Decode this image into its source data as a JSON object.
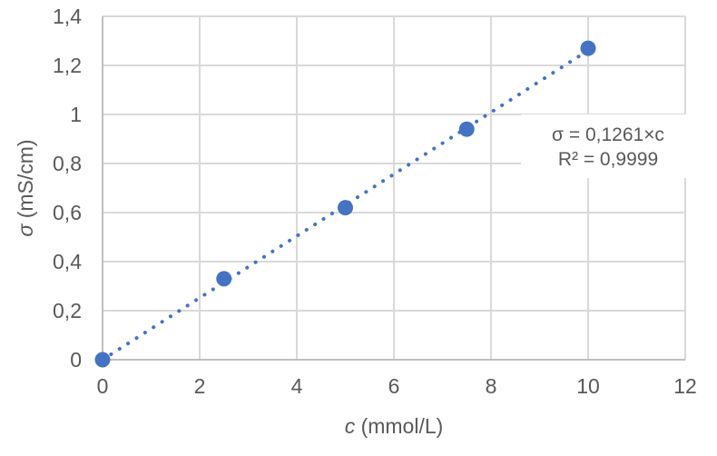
{
  "chart_data": {
    "type": "scatter",
    "title": "",
    "x": [
      0,
      2.5,
      5,
      7.5,
      10
    ],
    "y": [
      0,
      0.33,
      0.62,
      0.94,
      1.27
    ],
    "xlabel": "c (mmol/L)",
    "xlabel_var": "c",
    "xlabel_unit": " (mmol/L)",
    "ylabel": "σ (mS/cm)",
    "ylabel_var": "σ",
    "ylabel_unit": " (mS/cm)",
    "xlim": [
      0,
      12
    ],
    "ylim": [
      0,
      1.4
    ],
    "x_tick_values": [
      0,
      2,
      4,
      6,
      8,
      10,
      12
    ],
    "x_tick_labels": [
      "0",
      "2",
      "4",
      "6",
      "8",
      "10",
      "12"
    ],
    "y_tick_values": [
      0,
      0.2,
      0.4,
      0.6,
      0.8,
      1.0,
      1.2,
      1.4
    ],
    "y_tick_labels": [
      "0",
      "0,2",
      "0,4",
      "0,6",
      "0,8",
      "1",
      "1,2",
      "1,4"
    ],
    "grid": true,
    "legend": false,
    "trendline": {
      "type": "linear",
      "slope": 0.1261,
      "intercept": 0,
      "x_start": 0,
      "x_end": 10,
      "style": "dotted"
    },
    "annotation": {
      "equation": "σ = 0,1261×c",
      "r_squared": "R² = 0,9999"
    },
    "colors": {
      "marker": "#4472C4",
      "trendline": "#4472C4",
      "gridline": "#D9D9D9",
      "axis_line": "#BFBFBF",
      "text": "#595959",
      "background": "#FFFFFF"
    }
  }
}
